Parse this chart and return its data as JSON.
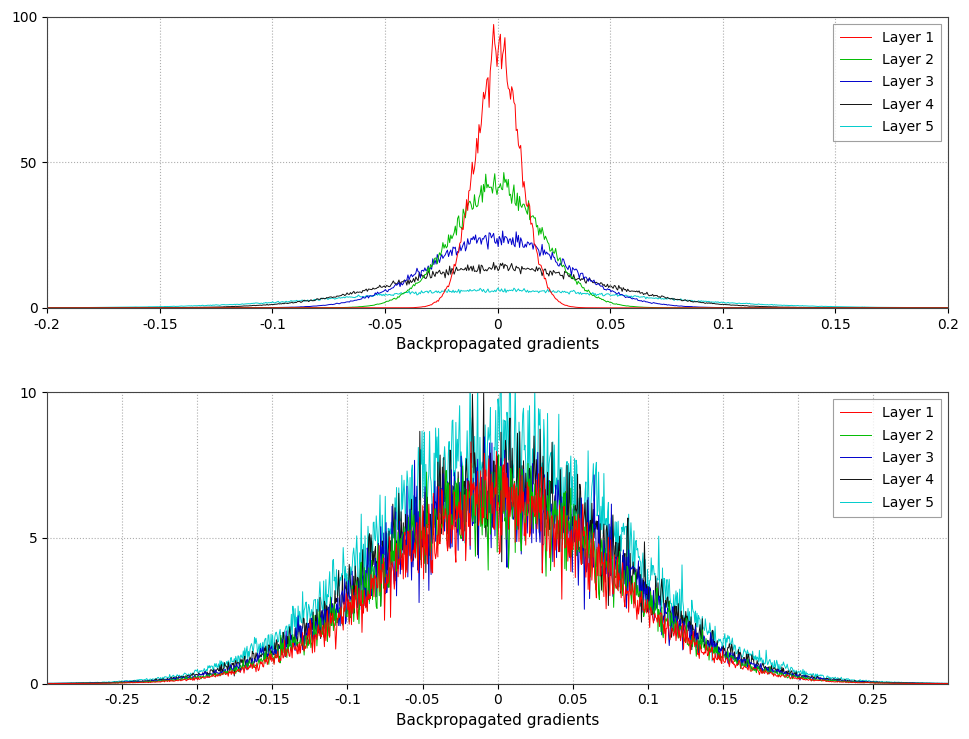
{
  "top_plot": {
    "xlim": [
      -0.2,
      0.2
    ],
    "ylim": [
      0,
      100
    ],
    "yticks": [
      0,
      50,
      100
    ],
    "xticks": [
      -0.2,
      -0.15,
      -0.1,
      -0.05,
      0.0,
      0.05,
      0.1,
      0.15,
      0.2
    ],
    "xlabel": "Backpropagated gradients",
    "layers": [
      {
        "name": "Layer 1",
        "color": "#ff0000",
        "std": 0.01,
        "peak": 88
      },
      {
        "name": "Layer 2",
        "color": "#00bb00",
        "std": 0.02,
        "peak": 42
      },
      {
        "name": "Layer 3",
        "color": "#0000cc",
        "std": 0.03,
        "peak": 24
      },
      {
        "name": "Layer 4",
        "color": "#111111",
        "std": 0.045,
        "peak": 14
      },
      {
        "name": "Layer 5",
        "color": "#00cccc",
        "std": 0.065,
        "peak": 6
      }
    ],
    "noise_scale": 0.06,
    "n_points": 800
  },
  "bottom_plot": {
    "xlim": [
      -0.3,
      0.3
    ],
    "ylim": [
      0,
      10
    ],
    "yticks": [
      0,
      5,
      10
    ],
    "xticks": [
      -0.25,
      -0.2,
      -0.15,
      -0.1,
      -0.05,
      0.0,
      0.05,
      0.1,
      0.15,
      0.2,
      0.25
    ],
    "xlabel": "Backpropagated gradients",
    "layers": [
      {
        "name": "Layer 1",
        "color": "#ff0000",
        "std": 0.075,
        "peak": 6.2
      },
      {
        "name": "Layer 2",
        "color": "#00bb00",
        "std": 0.077,
        "peak": 6.3
      },
      {
        "name": "Layer 3",
        "color": "#0000cc",
        "std": 0.079,
        "peak": 6.5
      },
      {
        "name": "Layer 4",
        "color": "#111111",
        "std": 0.08,
        "peak": 7.0
      },
      {
        "name": "Layer 5",
        "color": "#00cccc",
        "std": 0.082,
        "peak": 8.0
      }
    ],
    "noise_scale": 0.15,
    "n_points": 1200
  },
  "background_color": "#ffffff",
  "grid_color": "#999999",
  "legend_fontsize": 10,
  "axis_fontsize": 11,
  "tick_fontsize": 10,
  "figsize": [
    9.7,
    7.39
  ],
  "dpi": 100
}
